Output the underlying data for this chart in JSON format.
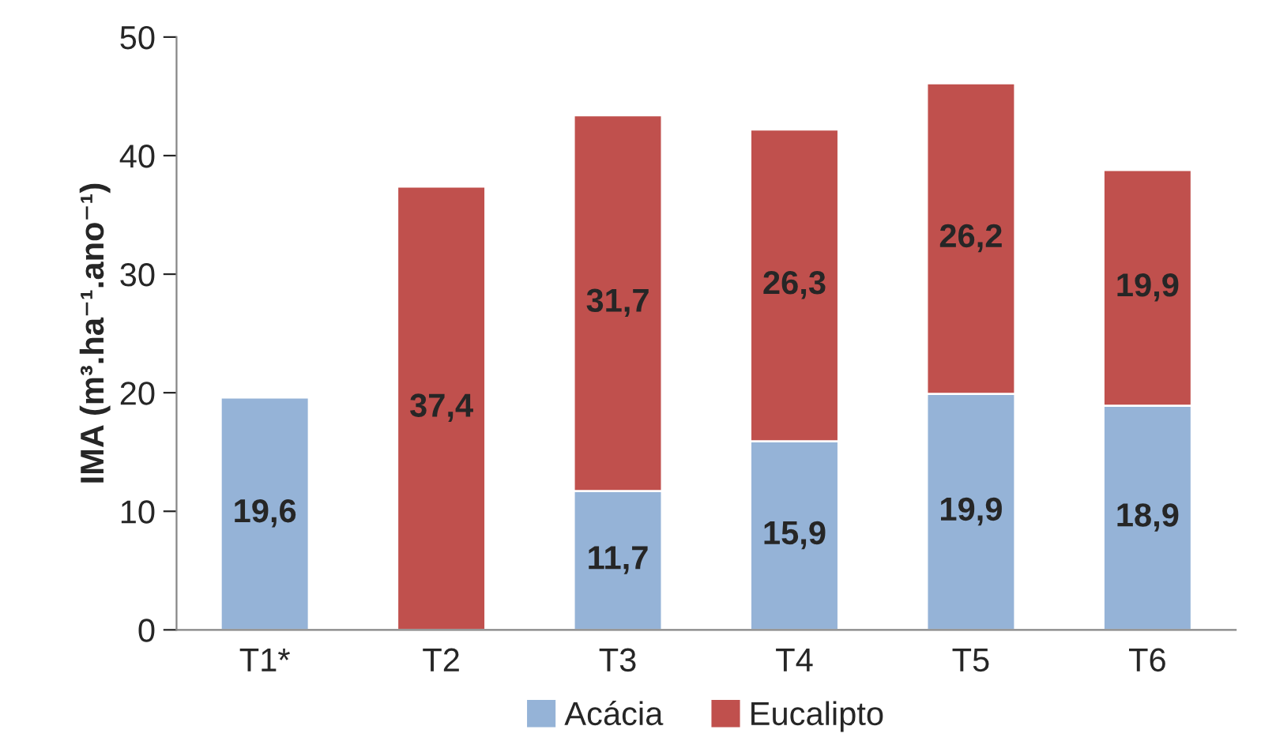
{
  "chart_data": {
    "type": "bar",
    "stacked": true,
    "ylabel": "IMA (m³.ha⁻¹.ano⁻¹)",
    "categories": [
      "T1*",
      "T2",
      "T3",
      "T4",
      "T5",
      "T6"
    ],
    "series": [
      {
        "name": "Acácia",
        "color": "#95b3d7",
        "values": [
          19.6,
          null,
          11.7,
          15.9,
          19.9,
          18.9
        ],
        "value_labels": [
          "19,6",
          null,
          "11,7",
          "15,9",
          "19,9",
          "18,9"
        ]
      },
      {
        "name": "Eucalipto",
        "color": "#c0504d",
        "values": [
          null,
          37.4,
          31.7,
          26.3,
          26.2,
          19.9
        ],
        "value_labels": [
          null,
          "37,4",
          "31,7",
          "26,3",
          "26,2",
          "19,9"
        ]
      }
    ],
    "ylim": [
      0,
      50
    ],
    "yticks": [
      0,
      10,
      20,
      30,
      40,
      50
    ],
    "grid": false,
    "legend": "bottom"
  }
}
